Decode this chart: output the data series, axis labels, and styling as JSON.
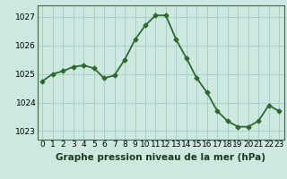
{
  "x": [
    0,
    1,
    2,
    3,
    4,
    5,
    6,
    7,
    8,
    9,
    10,
    11,
    12,
    13,
    14,
    15,
    16,
    17,
    18,
    19,
    20,
    21,
    22,
    23
  ],
  "y": [
    1024.75,
    1025.0,
    1025.1,
    1025.25,
    1025.3,
    1025.2,
    1024.85,
    1024.95,
    1025.5,
    1026.2,
    1026.7,
    1027.05,
    1027.05,
    1026.2,
    1025.55,
    1024.85,
    1024.35,
    1023.7,
    1023.35,
    1023.15,
    1023.15,
    1023.35,
    1023.9,
    1023.7
  ],
  "line_color": "#2d6a2d",
  "marker": "D",
  "marker_size": 2.5,
  "bg_color": "#cce8e0",
  "grid_color": "#aacfc7",
  "bottom_label": "Graphe pression niveau de la mer (hPa)",
  "ylim": [
    1022.7,
    1027.4
  ],
  "xlim": [
    -0.5,
    23.5
  ],
  "yticks": [
    1023,
    1024,
    1025,
    1026,
    1027
  ],
  "xtick_labels": [
    "0",
    "1",
    "2",
    "3",
    "4",
    "5",
    "6",
    "7",
    "8",
    "9",
    "10",
    "11",
    "12",
    "13",
    "14",
    "15",
    "16",
    "17",
    "18",
    "19",
    "20",
    "21",
    "22",
    "23"
  ],
  "title_fontsize": 7.5,
  "tick_fontsize": 6.5,
  "linewidth": 1.3
}
